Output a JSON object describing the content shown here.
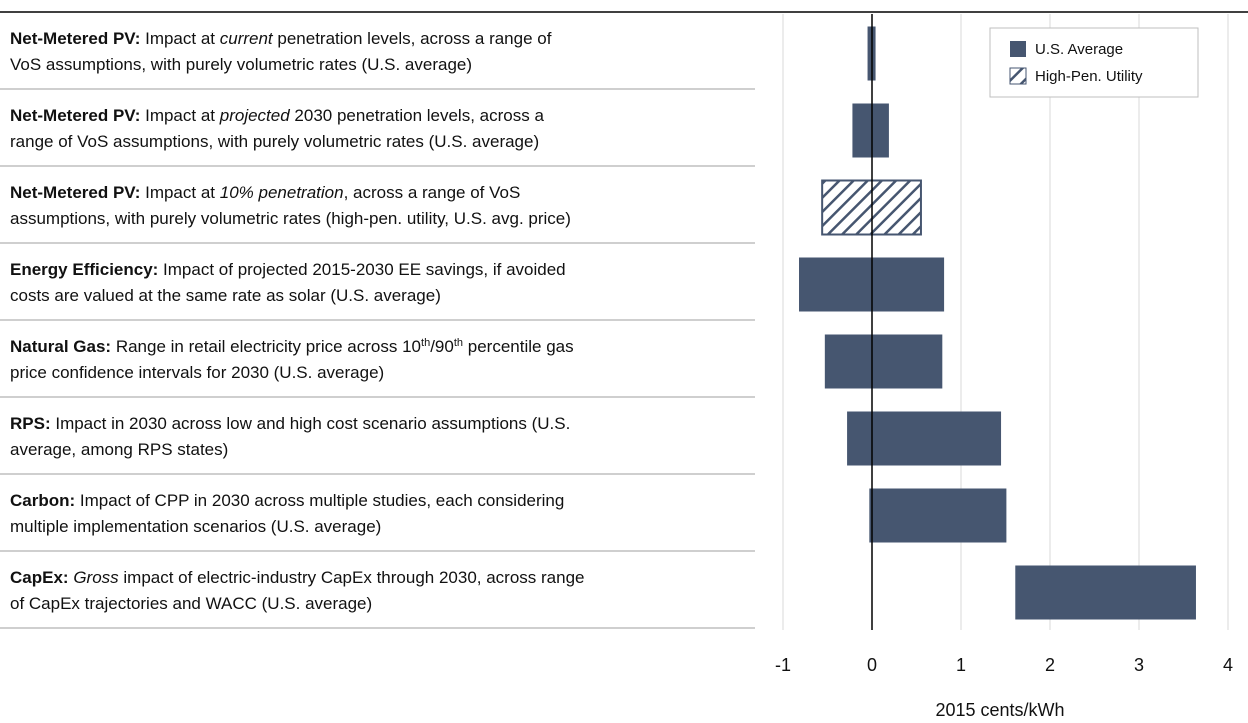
{
  "chart_data": {
    "type": "range_bar",
    "xlabel": "2015 cents/kWh",
    "xlim": [
      -1,
      4
    ],
    "xticks": [
      -1,
      0,
      1,
      2,
      3,
      4
    ],
    "grid": true,
    "legend": "upper right",
    "categories": [
      [
        [
          {
            "text": "Net-Metered PV:",
            "style": "bold"
          },
          {
            "text": " Impact at ",
            "style": "normal"
          },
          {
            "text": "current",
            "style": "italic"
          },
          {
            "text": " penetration levels, across a range of",
            "style": "normal"
          }
        ],
        [
          {
            "text": "VoS assumptions, with purely volumetric rates (U.S. average)",
            "style": "normal"
          }
        ]
      ],
      [
        [
          {
            "text": "Net-Metered PV:",
            "style": "bold"
          },
          {
            "text": " Impact at ",
            "style": "normal"
          },
          {
            "text": "projected",
            "style": "italic"
          },
          {
            "text": " 2030 penetration levels, across a",
            "style": "normal"
          }
        ],
        [
          {
            "text": "range of VoS assumptions, with purely volumetric rates (U.S. average)",
            "style": "normal"
          }
        ]
      ],
      [
        [
          {
            "text": "Net-Metered PV:",
            "style": "bold"
          },
          {
            "text": " Impact at ",
            "style": "normal"
          },
          {
            "text": "10% penetration",
            "style": "italic"
          },
          {
            "text": ", across a range of VoS",
            "style": "normal"
          }
        ],
        [
          {
            "text": "assumptions, with purely volumetric rates (high-pen. utility, U.S. avg. price)",
            "style": "normal"
          }
        ]
      ],
      [
        [
          {
            "text": "Energy Efficiency:",
            "style": "bold"
          },
          {
            "text": " Impact of projected 2015-2030 EE savings, if avoided",
            "style": "normal"
          }
        ],
        [
          {
            "text": "costs are valued at the same rate as solar (U.S. average)",
            "style": "normal"
          }
        ]
      ],
      [
        [
          {
            "text": "Natural Gas:",
            "style": "bold"
          },
          {
            "text": " Range in retail electricity price across 10",
            "style": "normal"
          },
          {
            "text": "th",
            "style": "sup"
          },
          {
            "text": "/90",
            "style": "normal"
          },
          {
            "text": "th",
            "style": "sup"
          },
          {
            "text": " percentile gas",
            "style": "normal"
          }
        ],
        [
          {
            "text": "price confidence intervals for 2030 (U.S. average)",
            "style": "normal"
          }
        ]
      ],
      [
        [
          {
            "text": "RPS:",
            "style": "bold"
          },
          {
            "text": " Impact in 2030 across low and high cost scenario assumptions (U.S.",
            "style": "normal"
          }
        ],
        [
          {
            "text": "average, among RPS states)",
            "style": "normal"
          }
        ]
      ],
      [
        [
          {
            "text": "Carbon:",
            "style": "bold"
          },
          {
            "text": " Impact of CPP in 2030 across multiple studies, each considering",
            "style": "normal"
          }
        ],
        [
          {
            "text": "multiple implementation scenarios (U.S. average)",
            "style": "normal"
          }
        ]
      ],
      [
        [
          {
            "text": "CapEx:",
            "style": "bold"
          },
          {
            "text": " ",
            "style": "normal"
          },
          {
            "text": "Gross",
            "style": "italic"
          },
          {
            "text": " impact of electric-industry CapEx through 2030, across range",
            "style": "normal"
          }
        ],
        [
          {
            "text": "of CapEx trajectories and WACC (U.S. average)",
            "style": "normal"
          }
        ]
      ]
    ],
    "series": [
      {
        "name": "U.S. Average",
        "color": "#465670",
        "pattern": "solid",
        "low": [
          -0.05,
          -0.22,
          null,
          -0.82,
          -0.53,
          -0.28,
          -0.03,
          1.61
        ],
        "high": [
          0.04,
          0.19,
          null,
          0.81,
          0.79,
          1.45,
          1.51,
          3.64
        ]
      },
      {
        "name": "High-Pen. Utility",
        "color": "#465670",
        "pattern": "hatch",
        "low": [
          null,
          null,
          -0.56,
          null,
          null,
          null,
          null,
          null
        ],
        "high": [
          null,
          null,
          0.55,
          null,
          null,
          null,
          null,
          null
        ]
      }
    ]
  }
}
